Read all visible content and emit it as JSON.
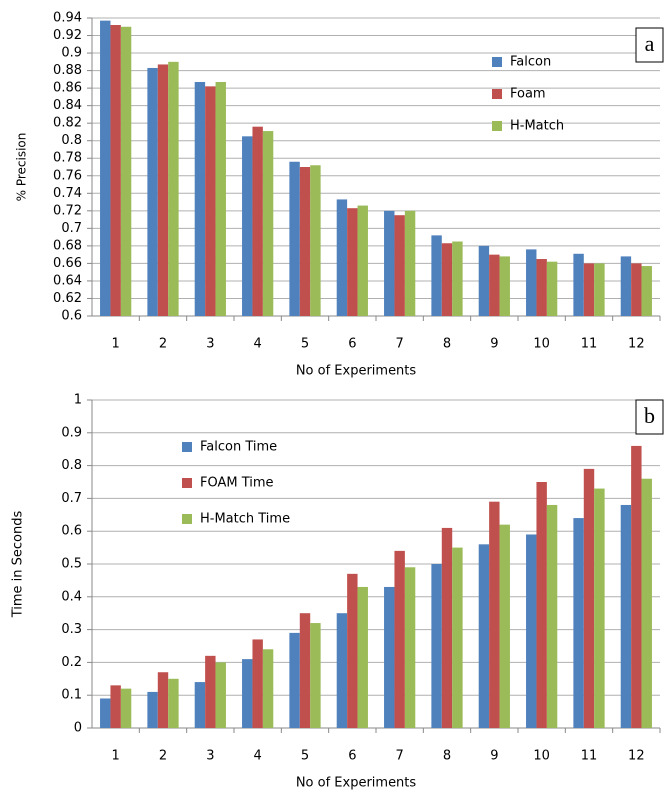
{
  "chart_data": [
    {
      "type": "bar",
      "panel_label": "a",
      "ylabel": "% Precision",
      "xlabel": "No of Experiments",
      "categories": [
        "1",
        "2",
        "3",
        "4",
        "5",
        "6",
        "7",
        "8",
        "9",
        "10",
        "11",
        "12"
      ],
      "series": [
        {
          "name": "Falcon",
          "color": "#4f81bd",
          "values": [
            0.937,
            0.883,
            0.867,
            0.805,
            0.776,
            0.733,
            0.72,
            0.692,
            0.68,
            0.676,
            0.671,
            0.668
          ]
        },
        {
          "name": "Foam",
          "color": "#c0504d",
          "values": [
            0.932,
            0.887,
            0.862,
            0.816,
            0.77,
            0.723,
            0.715,
            0.683,
            0.67,
            0.665,
            0.66,
            0.66
          ]
        },
        {
          "name": "H-Match",
          "color": "#9bbb59",
          "values": [
            0.93,
            0.89,
            0.867,
            0.811,
            0.772,
            0.726,
            0.72,
            0.685,
            0.668,
            0.662,
            0.66,
            0.657
          ]
        }
      ],
      "ylim": [
        0.6,
        0.94
      ],
      "yticks": [
        0.6,
        0.62,
        0.64,
        0.66,
        0.68,
        0.7,
        0.72,
        0.74,
        0.76,
        0.78,
        0.8,
        0.82,
        0.84,
        0.86,
        0.88,
        0.9,
        0.92,
        0.94
      ],
      "grid": true
    },
    {
      "type": "bar",
      "panel_label": "b",
      "ylabel": "Time in Seconds",
      "xlabel": "No of Experiments",
      "categories": [
        "1",
        "2",
        "3",
        "4",
        "5",
        "6",
        "7",
        "8",
        "9",
        "10",
        "11",
        "12"
      ],
      "series": [
        {
          "name": "Falcon Time",
          "color": "#4f81bd",
          "values": [
            0.09,
            0.11,
            0.14,
            0.21,
            0.29,
            0.35,
            0.43,
            0.5,
            0.56,
            0.59,
            0.64,
            0.68
          ]
        },
        {
          "name": "FOAM Time",
          "color": "#c0504d",
          "values": [
            0.13,
            0.17,
            0.22,
            0.27,
            0.35,
            0.47,
            0.54,
            0.61,
            0.69,
            0.75,
            0.79,
            0.86
          ]
        },
        {
          "name": "H-Match Time",
          "color": "#9bbb59",
          "values": [
            0.12,
            0.15,
            0.2,
            0.24,
            0.32,
            0.43,
            0.49,
            0.55,
            0.62,
            0.68,
            0.73,
            0.76
          ]
        }
      ],
      "ylim": [
        0,
        1
      ],
      "yticks": [
        0,
        0.1,
        0.2,
        0.3,
        0.4,
        0.5,
        0.6,
        0.7,
        0.8,
        0.9,
        1
      ],
      "grid": true
    }
  ]
}
